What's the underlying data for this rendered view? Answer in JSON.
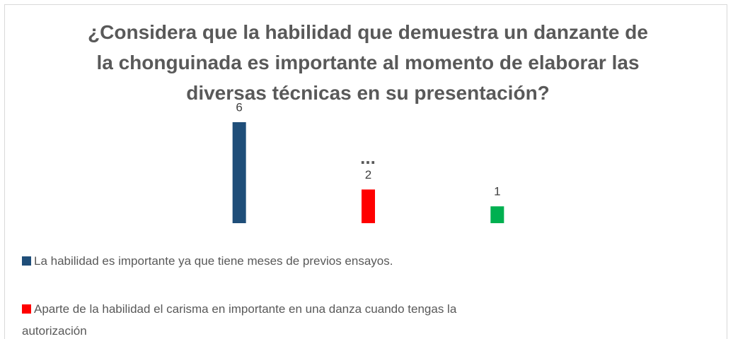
{
  "chart_data": {
    "type": "bar",
    "title": "¿Considera que la habilidad que demuestra un danzante de la chonguinada es importante al momento de elaborar las diversas técnicas en su presentación?",
    "title_overflow": "...",
    "ylim": [
      0,
      6
    ],
    "series": [
      {
        "name": "La habilidad es importante ya que tiene meses de previos ensayos.",
        "color": "#1f4e79",
        "values": [
          6
        ]
      },
      {
        "name": "Aparte de la habilidad el carisma en importante en una danza cuando tengas la autorización",
        "color": "#ff0000",
        "values": [
          2
        ]
      },
      {
        "color": "#00b050",
        "values": [
          1
        ]
      }
    ]
  }
}
